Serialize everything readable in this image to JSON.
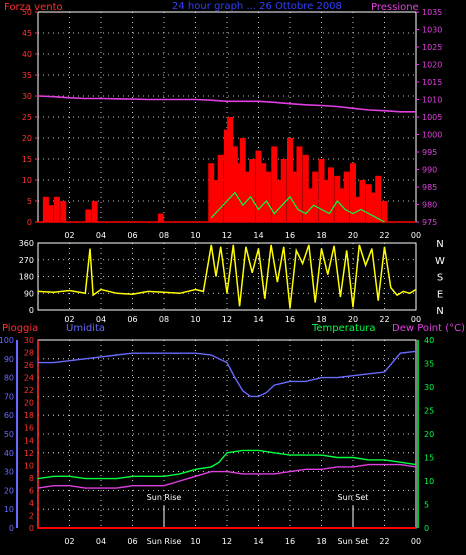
{
  "chart_data": [
    {
      "type": "line",
      "title": "24 hour graph ... 26 Ottobre 2008",
      "ylabel_left": "Forza vento",
      "ylabel_right": "Pressione",
      "x_ticks": [
        "02",
        "04",
        "06",
        "08",
        "10",
        "12",
        "14",
        "16",
        "18",
        "20",
        "22",
        "00"
      ],
      "y_left_ticks": [
        "0",
        "5",
        "10",
        "15",
        "20",
        "25",
        "30",
        "35",
        "40",
        "45",
        "50"
      ],
      "ylim_left": [
        0,
        50
      ],
      "y_right_ticks": [
        "975",
        "980",
        "985",
        "990",
        "995",
        "1000",
        "1005",
        "1010",
        "1015",
        "1020",
        "1025",
        "1030",
        "1035"
      ],
      "ylim_right": [
        975,
        1035
      ],
      "grid": true,
      "series": [
        {
          "name": "Pressione",
          "color": "#e040e0",
          "axis": "right",
          "x": [
            0,
            1,
            2,
            3,
            4,
            5,
            6,
            7,
            8,
            9,
            10,
            11,
            12,
            13,
            14,
            15,
            16,
            17,
            18,
            19,
            20,
            21,
            22,
            23,
            24
          ],
          "values": [
            1011,
            1010.8,
            1010.5,
            1010.3,
            1010.3,
            1010.2,
            1010.1,
            1010,
            1010,
            1010,
            1010,
            1009.8,
            1009.5,
            1009.5,
            1009.5,
            1009.2,
            1008.8,
            1008.5,
            1008.3,
            1008,
            1007.5,
            1007,
            1006.8,
            1006.5,
            1006.5
          ]
        },
        {
          "name": "Forza vento",
          "color": "#ff0000",
          "axis": "left",
          "style": "bars",
          "x": [
            0.5,
            0.8,
            1.2,
            1.6,
            3.2,
            3.6,
            7.8,
            11.0,
            11.3,
            11.6,
            12.0,
            12.2,
            12.5,
            12.8,
            13.0,
            13.3,
            13.6,
            14.0,
            14.3,
            14.6,
            15.0,
            15.3,
            15.6,
            16.0,
            16.3,
            16.6,
            17.0,
            17.3,
            17.6,
            18.0,
            18.3,
            18.6,
            19.0,
            19.3,
            19.6,
            20.0,
            20.3,
            20.6,
            21.0,
            21.3,
            21.6,
            22.0
          ],
          "values": [
            6,
            4,
            6,
            5,
            3,
            5,
            2,
            14,
            10,
            16,
            22,
            25,
            18,
            14,
            20,
            12,
            15,
            17,
            14,
            12,
            18,
            10,
            15,
            20,
            12,
            18,
            16,
            8,
            12,
            15,
            10,
            13,
            11,
            8,
            12,
            14,
            6,
            10,
            9,
            7,
            11,
            5
          ]
        },
        {
          "name": "Raffica",
          "color": "#00ff40",
          "axis": "left",
          "style": "line",
          "x": [
            11.0,
            11.5,
            12.0,
            12.5,
            13.0,
            13.5,
            14.0,
            14.5,
            15.0,
            15.5,
            16.0,
            16.5,
            17.0,
            17.5,
            18.0,
            18.5,
            19.0,
            19.5,
            20.0,
            20.5,
            21.0,
            21.5,
            22.0
          ],
          "values": [
            1,
            3,
            5,
            7,
            4,
            6,
            3,
            5,
            2,
            4,
            6,
            3,
            2,
            4,
            3,
            2,
            5,
            3,
            2,
            3,
            2,
            1,
            0
          ]
        }
      ]
    },
    {
      "type": "line",
      "ylabel_right": "N W S E N",
      "y_ticks": [
        "0",
        "90",
        "180",
        "270",
        "360"
      ],
      "ylim": [
        0,
        360
      ],
      "compass": [
        "N",
        "W",
        "S",
        "E",
        "N"
      ],
      "x_ticks": [
        "02",
        "04",
        "06",
        "08",
        "10",
        "12",
        "14",
        "16",
        "18",
        "20",
        "22",
        "00"
      ],
      "grid": true,
      "series": [
        {
          "name": "Direzione vento",
          "color": "#ffff00",
          "x": [
            0,
            1,
            2,
            3,
            3.3,
            3.5,
            4,
            5,
            6,
            7,
            8,
            9,
            10,
            10.5,
            11,
            11.3,
            11.6,
            12,
            12.4,
            12.8,
            13.2,
            13.6,
            14,
            14.4,
            14.8,
            15.2,
            15.6,
            16,
            16.4,
            16.8,
            17.2,
            17.6,
            18,
            18.4,
            18.8,
            19.2,
            19.6,
            20,
            20.4,
            20.8,
            21.2,
            21.6,
            22,
            22.4,
            22.8,
            23.2,
            23.6,
            24
          ],
          "values": [
            100,
            95,
            105,
            90,
            330,
            80,
            110,
            90,
            85,
            100,
            95,
            90,
            110,
            100,
            350,
            180,
            340,
            90,
            350,
            20,
            340,
            200,
            330,
            60,
            350,
            150,
            340,
            10,
            320,
            250,
            350,
            40,
            330,
            190,
            345,
            70,
            320,
            15,
            350,
            240,
            330,
            50,
            340,
            120,
            80,
            100,
            90,
            110
          ]
        }
      ]
    },
    {
      "type": "line",
      "labels": {
        "rain": "Pioggia",
        "humidity": "Umidita",
        "temperature": "Temperatura",
        "dewpoint": "Dew Point (°C)"
      },
      "y_rain_ticks": [
        "0",
        "2",
        "4",
        "6",
        "8",
        "10",
        "12",
        "14",
        "16",
        "18",
        "20",
        "22",
        "24",
        "26",
        "28",
        "30"
      ],
      "ylim_rain": [
        0,
        30
      ],
      "y_hum_ticks": [
        "0",
        "10",
        "20",
        "30",
        "40",
        "50",
        "60",
        "70",
        "80",
        "90",
        "100"
      ],
      "ylim_hum": [
        0,
        100
      ],
      "y_temp_ticks": [
        "0",
        "5",
        "10",
        "15",
        "20",
        "25",
        "30",
        "35",
        "40"
      ],
      "ylim_temp": [
        0,
        40
      ],
      "x_ticks": [
        "02",
        "04",
        "06",
        "Sun Rise",
        "10",
        "12",
        "14",
        "16",
        "18",
        "Sun Set",
        "22",
        "00"
      ],
      "annotations": [
        "Sun Rise",
        "Sun Set"
      ],
      "grid": true,
      "series": [
        {
          "name": "Umidita",
          "color": "#6a6aff",
          "axis": "hum",
          "x": [
            0,
            1,
            2,
            3,
            4,
            5,
            6,
            7,
            8,
            9,
            10,
            11,
            12,
            12.5,
            13,
            13.5,
            14,
            14.5,
            15,
            16,
            17,
            18,
            19,
            20,
            21,
            22,
            23,
            24
          ],
          "values": [
            88,
            88,
            89,
            90,
            91,
            92,
            93,
            93,
            93,
            93,
            93,
            92,
            88,
            80,
            73,
            70,
            70,
            72,
            76,
            78,
            78,
            80,
            80,
            81,
            82,
            83,
            93,
            94
          ]
        },
        {
          "name": "Temperatura",
          "color": "#00ff40",
          "axis": "temp",
          "x": [
            0,
            1,
            2,
            3,
            4,
            5,
            6,
            7,
            8,
            9,
            10,
            11,
            11.5,
            12,
            13,
            14,
            15,
            16,
            17,
            18,
            19,
            20,
            21,
            22,
            23,
            24
          ],
          "values": [
            10.5,
            11,
            11,
            10.5,
            10.5,
            10.5,
            11,
            11,
            11,
            11.5,
            12.5,
            13,
            14,
            16,
            16.5,
            16.5,
            16,
            15.5,
            15.5,
            15.5,
            15,
            15,
            14.5,
            14.5,
            14,
            13.5
          ]
        },
        {
          "name": "Dew Point (°C)",
          "color": "#e040e0",
          "axis": "temp",
          "x": [
            0,
            1,
            2,
            3,
            4,
            5,
            6,
            7,
            8,
            9,
            10,
            11,
            12,
            13,
            14,
            15,
            16,
            17,
            18,
            19,
            20,
            21,
            22,
            23,
            24
          ],
          "values": [
            8.5,
            9,
            9,
            8.5,
            8.5,
            8.5,
            9,
            9,
            9,
            10,
            11,
            12,
            12,
            11.5,
            11.5,
            11.5,
            12,
            12.5,
            12.5,
            13,
            13,
            13.5,
            13.5,
            13.5,
            13
          ]
        },
        {
          "name": "Pioggia",
          "color": "#ff0000",
          "axis": "rain",
          "x": [
            0,
            24
          ],
          "values": [
            0,
            0
          ]
        }
      ]
    }
  ]
}
